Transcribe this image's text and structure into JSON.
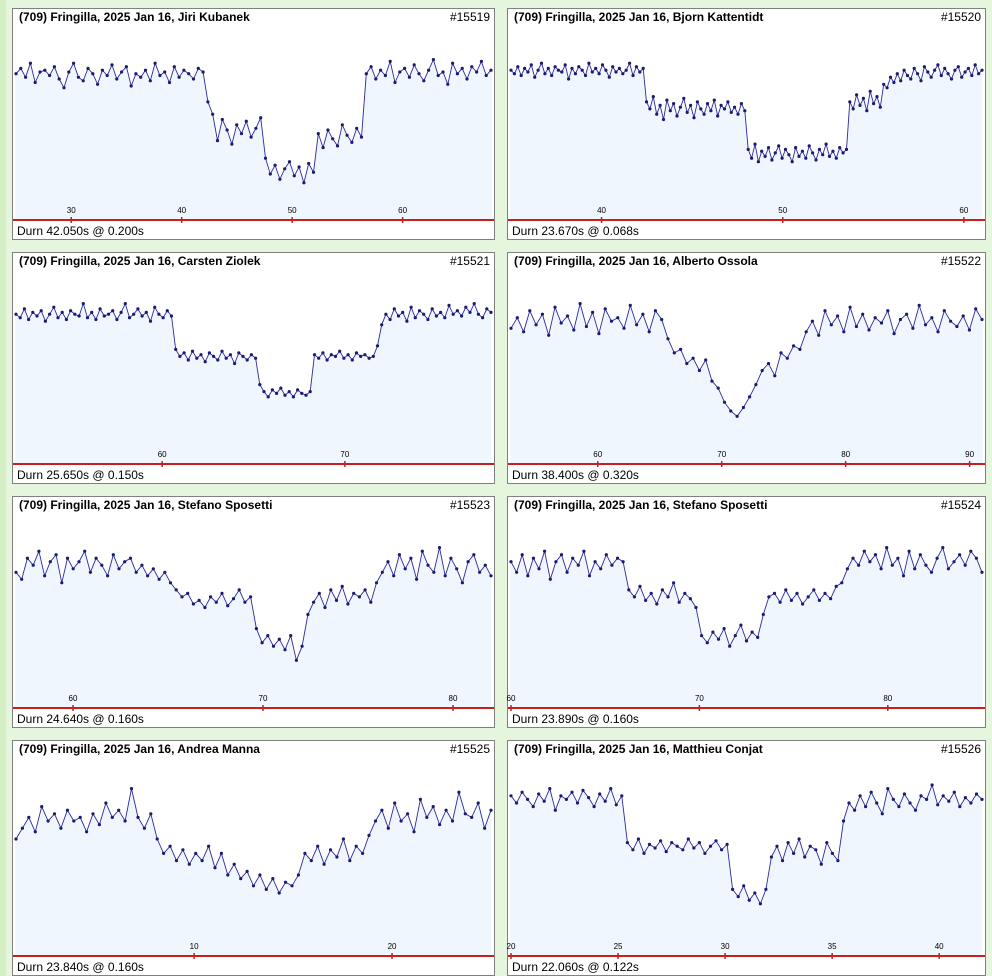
{
  "colors": {
    "line": "#2a2a9e",
    "marker": "#1a1a70",
    "fill": "#f0f6fd",
    "axis": "#c81e1e",
    "page": "#e6f5dd"
  },
  "chart_data": [
    {
      "type": "line",
      "title": "(709) Fringilla,  2025 Jan 16,  Jiri Kubanek",
      "id": "#15519",
      "duration": "Durn 42.050s @ 0.200s",
      "xlim": [
        25,
        68
      ],
      "ticks": [
        30,
        40,
        50,
        60
      ],
      "ylim": [
        0,
        1
      ],
      "series": [
        {
          "values": [
            0.78,
            0.81,
            0.76,
            0.84,
            0.73,
            0.79,
            0.8,
            0.77,
            0.82,
            0.75,
            0.7,
            0.79,
            0.84,
            0.76,
            0.74,
            0.81,
            0.78,
            0.72,
            0.8,
            0.77,
            0.83,
            0.75,
            0.79,
            0.82,
            0.71,
            0.78,
            0.76,
            0.8,
            0.74,
            0.84,
            0.77,
            0.79,
            0.73,
            0.82,
            0.76,
            0.8,
            0.78,
            0.75,
            0.81,
            0.79,
            0.62,
            0.55,
            0.4,
            0.52,
            0.46,
            0.38,
            0.49,
            0.44,
            0.51,
            0.42,
            0.47,
            0.53,
            0.3,
            0.21,
            0.26,
            0.18,
            0.24,
            0.28,
            0.2,
            0.25,
            0.16,
            0.27,
            0.22,
            0.44,
            0.36,
            0.46,
            0.41,
            0.37,
            0.49,
            0.43,
            0.39,
            0.47,
            0.42,
            0.78,
            0.82,
            0.75,
            0.8,
            0.77,
            0.85,
            0.73,
            0.79,
            0.81,
            0.76,
            0.83,
            0.78,
            0.74,
            0.8,
            0.86,
            0.77,
            0.79,
            0.72,
            0.84,
            0.78,
            0.81,
            0.75,
            0.82,
            0.79,
            0.85,
            0.77,
            0.8
          ]
        }
      ]
    },
    {
      "type": "line",
      "title": "(709) Fringilla,  2025 Jan 16,  Bjorn Kattentidt",
      "id": "#15520",
      "duration": "Durn 23.670s @ 0.068s",
      "xlim": [
        35,
        61
      ],
      "ticks": [
        40,
        50,
        60
      ],
      "ylim": [
        0,
        1
      ],
      "series": [
        {
          "values": [
            0.8,
            0.78,
            0.82,
            0.77,
            0.81,
            0.79,
            0.83,
            0.76,
            0.8,
            0.84,
            0.78,
            0.81,
            0.77,
            0.82,
            0.8,
            0.79,
            0.83,
            0.75,
            0.81,
            0.78,
            0.82,
            0.8,
            0.77,
            0.84,
            0.79,
            0.81,
            0.78,
            0.83,
            0.8,
            0.76,
            0.82,
            0.79,
            0.81,
            0.78,
            0.8,
            0.84,
            0.77,
            0.82,
            0.79,
            0.81,
            0.62,
            0.58,
            0.65,
            0.55,
            0.6,
            0.52,
            0.63,
            0.57,
            0.61,
            0.54,
            0.59,
            0.64,
            0.56,
            0.6,
            0.53,
            0.62,
            0.58,
            0.55,
            0.61,
            0.57,
            0.63,
            0.54,
            0.6,
            0.58,
            0.62,
            0.56,
            0.59,
            0.55,
            0.61,
            0.57,
            0.35,
            0.3,
            0.38,
            0.28,
            0.34,
            0.31,
            0.36,
            0.29,
            0.33,
            0.37,
            0.3,
            0.35,
            0.32,
            0.28,
            0.36,
            0.31,
            0.34,
            0.3,
            0.37,
            0.33,
            0.29,
            0.35,
            0.32,
            0.38,
            0.31,
            0.34,
            0.3,
            0.36,
            0.33,
            0.35,
            0.62,
            0.58,
            0.66,
            0.6,
            0.64,
            0.57,
            0.68,
            0.61,
            0.65,
            0.59,
            0.72,
            0.7,
            0.76,
            0.73,
            0.78,
            0.74,
            0.8,
            0.77,
            0.75,
            0.81,
            0.78,
            0.74,
            0.82,
            0.79,
            0.76,
            0.8,
            0.83,
            0.77,
            0.81,
            0.78,
            0.75,
            0.8,
            0.82,
            0.76,
            0.79,
            0.81,
            0.77,
            0.83,
            0.78,
            0.8
          ]
        }
      ]
    },
    {
      "type": "line",
      "title": "(709) Fringilla,  2025 Jan 16,  Carsten Ziolek",
      "id": "#15521",
      "duration": "Durn 25.650s @ 0.150s",
      "xlim": [
        52,
        78
      ],
      "ticks": [
        60,
        70
      ],
      "ylim": [
        0,
        1
      ],
      "series": [
        {
          "values": [
            0.8,
            0.78,
            0.83,
            0.77,
            0.81,
            0.79,
            0.82,
            0.76,
            0.8,
            0.84,
            0.78,
            0.81,
            0.77,
            0.82,
            0.8,
            0.79,
            0.86,
            0.78,
            0.81,
            0.77,
            0.83,
            0.79,
            0.8,
            0.82,
            0.77,
            0.81,
            0.86,
            0.78,
            0.8,
            0.83,
            0.79,
            0.81,
            0.76,
            0.84,
            0.8,
            0.78,
            0.82,
            0.79,
            0.6,
            0.56,
            0.58,
            0.54,
            0.59,
            0.55,
            0.57,
            0.53,
            0.58,
            0.56,
            0.54,
            0.59,
            0.55,
            0.57,
            0.52,
            0.58,
            0.56,
            0.54,
            0.57,
            0.55,
            0.4,
            0.36,
            0.33,
            0.37,
            0.35,
            0.38,
            0.34,
            0.36,
            0.33,
            0.37,
            0.35,
            0.34,
            0.36,
            0.57,
            0.55,
            0.58,
            0.54,
            0.57,
            0.56,
            0.59,
            0.55,
            0.57,
            0.54,
            0.58,
            0.56,
            0.57,
            0.55,
            0.56,
            0.62,
            0.74,
            0.8,
            0.77,
            0.83,
            0.79,
            0.81,
            0.76,
            0.84,
            0.78,
            0.82,
            0.8,
            0.77,
            0.83,
            0.79,
            0.81,
            0.78,
            0.85,
            0.8,
            0.82,
            0.79,
            0.84,
            0.81,
            0.86,
            0.8,
            0.78,
            0.83,
            0.81
          ]
        }
      ]
    },
    {
      "type": "line",
      "title": "(709) Fringilla,  2025 Jan 16,  Alberto Ossola",
      "id": "#15522",
      "duration": "Durn 38.400s @ 0.320s",
      "xlim": [
        53,
        91
      ],
      "ticks": [
        60,
        70,
        80,
        90
      ],
      "ylim": [
        0,
        1
      ],
      "series": [
        {
          "values": [
            0.72,
            0.78,
            0.7,
            0.82,
            0.74,
            0.8,
            0.68,
            0.84,
            0.75,
            0.79,
            0.71,
            0.86,
            0.73,
            0.81,
            0.69,
            0.83,
            0.76,
            0.78,
            0.72,
            0.85,
            0.74,
            0.8,
            0.7,
            0.82,
            0.77,
            0.66,
            0.58,
            0.6,
            0.52,
            0.55,
            0.48,
            0.54,
            0.42,
            0.38,
            0.3,
            0.25,
            0.22,
            0.27,
            0.33,
            0.4,
            0.48,
            0.52,
            0.45,
            0.58,
            0.55,
            0.62,
            0.6,
            0.7,
            0.76,
            0.68,
            0.82,
            0.74,
            0.79,
            0.7,
            0.84,
            0.73,
            0.8,
            0.71,
            0.78,
            0.75,
            0.82,
            0.69,
            0.77,
            0.8,
            0.72,
            0.85,
            0.74,
            0.78,
            0.7,
            0.82,
            0.76,
            0.73,
            0.79,
            0.71,
            0.83,
            0.77
          ]
        }
      ]
    },
    {
      "type": "line",
      "title": "(709) Fringilla,  2025 Jan 16,  Stefano Sposetti",
      "id": "#15523",
      "duration": "Durn 24.640s @ 0.160s",
      "xlim": [
        57,
        82
      ],
      "ticks": [
        60,
        70,
        80
      ],
      "ylim": [
        0,
        1
      ],
      "series": [
        {
          "values": [
            0.72,
            0.68,
            0.8,
            0.76,
            0.84,
            0.7,
            0.78,
            0.82,
            0.66,
            0.8,
            0.74,
            0.78,
            0.84,
            0.72,
            0.8,
            0.76,
            0.7,
            0.82,
            0.74,
            0.78,
            0.8,
            0.72,
            0.76,
            0.7,
            0.74,
            0.68,
            0.72,
            0.66,
            0.62,
            0.58,
            0.6,
            0.54,
            0.56,
            0.52,
            0.58,
            0.55,
            0.6,
            0.53,
            0.57,
            0.62,
            0.55,
            0.58,
            0.4,
            0.32,
            0.36,
            0.3,
            0.34,
            0.28,
            0.36,
            0.22,
            0.3,
            0.48,
            0.55,
            0.6,
            0.52,
            0.62,
            0.56,
            0.64,
            0.54,
            0.6,
            0.58,
            0.62,
            0.55,
            0.66,
            0.72,
            0.78,
            0.7,
            0.82,
            0.74,
            0.8,
            0.68,
            0.84,
            0.76,
            0.72,
            0.86,
            0.7,
            0.8,
            0.74,
            0.66,
            0.78,
            0.82,
            0.72,
            0.76,
            0.7
          ]
        }
      ]
    },
    {
      "type": "line",
      "title": "(709) Fringilla,  2025 Jan 16,  Stefano Sposetti",
      "id": "#15524",
      "duration": "Durn 23.890s @ 0.160s",
      "xlim": [
        60,
        85
      ],
      "ticks": [
        60,
        70,
        80
      ],
      "ylim": [
        0,
        1
      ],
      "series": [
        {
          "values": [
            0.78,
            0.72,
            0.82,
            0.7,
            0.8,
            0.74,
            0.84,
            0.68,
            0.78,
            0.82,
            0.72,
            0.8,
            0.76,
            0.84,
            0.7,
            0.78,
            0.74,
            0.82,
            0.76,
            0.8,
            0.78,
            0.62,
            0.58,
            0.64,
            0.56,
            0.6,
            0.54,
            0.62,
            0.58,
            0.66,
            0.55,
            0.6,
            0.57,
            0.52,
            0.36,
            0.32,
            0.38,
            0.34,
            0.4,
            0.3,
            0.36,
            0.42,
            0.33,
            0.38,
            0.35,
            0.48,
            0.58,
            0.6,
            0.55,
            0.62,
            0.56,
            0.6,
            0.54,
            0.58,
            0.62,
            0.56,
            0.6,
            0.57,
            0.64,
            0.66,
            0.74,
            0.8,
            0.76,
            0.84,
            0.78,
            0.82,
            0.74,
            0.86,
            0.76,
            0.8,
            0.7,
            0.84,
            0.74,
            0.82,
            0.76,
            0.72,
            0.8,
            0.86,
            0.74,
            0.78,
            0.82,
            0.76,
            0.84,
            0.8,
            0.72
          ]
        }
      ]
    },
    {
      "type": "line",
      "title": "(709) Fringilla,  2025 Jan 16,  Andrea Manna",
      "id": "#15525",
      "duration": "Durn 23.840s @ 0.160s",
      "xlim": [
        1,
        25
      ],
      "ticks": [
        10,
        20
      ],
      "ylim": [
        0,
        1
      ],
      "series": [
        {
          "values": [
            0.6,
            0.66,
            0.72,
            0.64,
            0.78,
            0.7,
            0.74,
            0.66,
            0.76,
            0.7,
            0.72,
            0.64,
            0.74,
            0.68,
            0.8,
            0.72,
            0.76,
            0.7,
            0.88,
            0.72,
            0.66,
            0.74,
            0.6,
            0.52,
            0.56,
            0.48,
            0.54,
            0.46,
            0.52,
            0.48,
            0.56,
            0.44,
            0.52,
            0.4,
            0.46,
            0.38,
            0.42,
            0.34,
            0.4,
            0.32,
            0.38,
            0.3,
            0.36,
            0.34,
            0.4,
            0.52,
            0.48,
            0.56,
            0.46,
            0.54,
            0.5,
            0.6,
            0.48,
            0.56,
            0.52,
            0.62,
            0.7,
            0.76,
            0.66,
            0.8,
            0.7,
            0.74,
            0.64,
            0.82,
            0.72,
            0.78,
            0.68,
            0.76,
            0.7,
            0.86,
            0.74,
            0.72,
            0.8,
            0.66,
            0.76
          ]
        }
      ]
    },
    {
      "type": "line",
      "title": "(709) Fringilla,  2025 Jan 16,  Matthieu Conjat",
      "id": "#15526",
      "duration": "Durn 22.060s @ 0.122s",
      "xlim": [
        20,
        42
      ],
      "ticks": [
        20,
        25,
        30,
        35,
        40
      ],
      "ylim": [
        0,
        1
      ],
      "series": [
        {
          "values": [
            0.84,
            0.8,
            0.86,
            0.82,
            0.78,
            0.85,
            0.81,
            0.88,
            0.76,
            0.84,
            0.82,
            0.86,
            0.8,
            0.87,
            0.83,
            0.78,
            0.85,
            0.81,
            0.88,
            0.79,
            0.84,
            0.58,
            0.54,
            0.6,
            0.52,
            0.57,
            0.55,
            0.59,
            0.53,
            0.58,
            0.56,
            0.54,
            0.6,
            0.55,
            0.58,
            0.52,
            0.56,
            0.59,
            0.54,
            0.57,
            0.32,
            0.28,
            0.34,
            0.26,
            0.3,
            0.24,
            0.32,
            0.5,
            0.56,
            0.48,
            0.58,
            0.52,
            0.6,
            0.5,
            0.56,
            0.54,
            0.46,
            0.58,
            0.52,
            0.48,
            0.7,
            0.8,
            0.76,
            0.84,
            0.78,
            0.86,
            0.8,
            0.74,
            0.88,
            0.82,
            0.78,
            0.85,
            0.8,
            0.76,
            0.84,
            0.82,
            0.9,
            0.79,
            0.84,
            0.81,
            0.86,
            0.78,
            0.83,
            0.8,
            0.85,
            0.82
          ]
        }
      ]
    }
  ]
}
